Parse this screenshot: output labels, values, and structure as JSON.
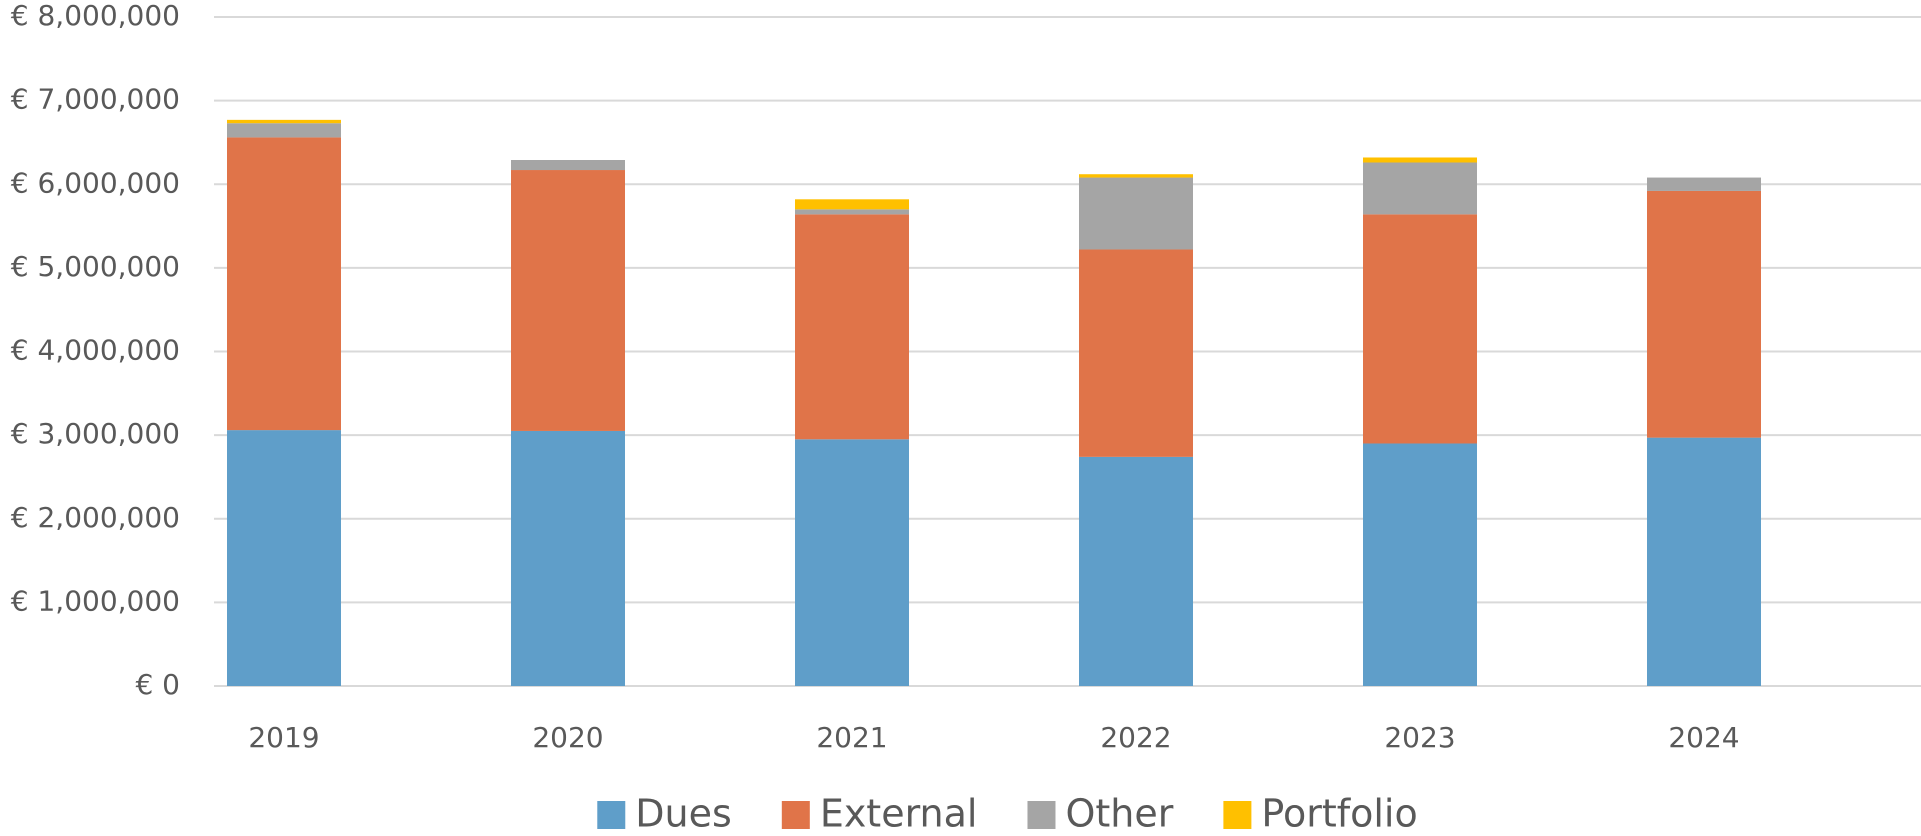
{
  "chart_data": {
    "type": "bar",
    "stacked": true,
    "categories": [
      "2019",
      "2020",
      "2021",
      "2022",
      "2023",
      "2024"
    ],
    "series": [
      {
        "name": "Dues",
        "color": "#5f9ec9",
        "values": [
          3060000,
          3050000,
          2950000,
          2740000,
          2900000,
          2970000
        ]
      },
      {
        "name": "External",
        "color": "#e07449",
        "values": [
          3500000,
          3120000,
          2690000,
          2480000,
          2740000,
          2950000
        ]
      },
      {
        "name": "Other",
        "color": "#a5a5a5",
        "values": [
          170000,
          120000,
          60000,
          860000,
          620000,
          160000
        ]
      },
      {
        "name": "Portfolio",
        "color": "#ffc000",
        "values": [
          40000,
          0,
          120000,
          40000,
          60000,
          0
        ]
      }
    ],
    "ylim": [
      0,
      8000000
    ],
    "yticks": [
      {
        "value": 0,
        "label": "€ 0"
      },
      {
        "value": 1000000,
        "label": "€ 1,000,000"
      },
      {
        "value": 2000000,
        "label": "€ 2,000,000"
      },
      {
        "value": 3000000,
        "label": "€ 3,000,000"
      },
      {
        "value": 4000000,
        "label": "€ 4,000,000"
      },
      {
        "value": 5000000,
        "label": "€ 5,000,000"
      },
      {
        "value": 6000000,
        "label": "€ 6,000,000"
      },
      {
        "value": 7000000,
        "label": "€ 7,000,000"
      },
      {
        "value": 8000000,
        "label": "€ 8,000,000"
      }
    ],
    "grid": true,
    "legend": "bottom"
  }
}
